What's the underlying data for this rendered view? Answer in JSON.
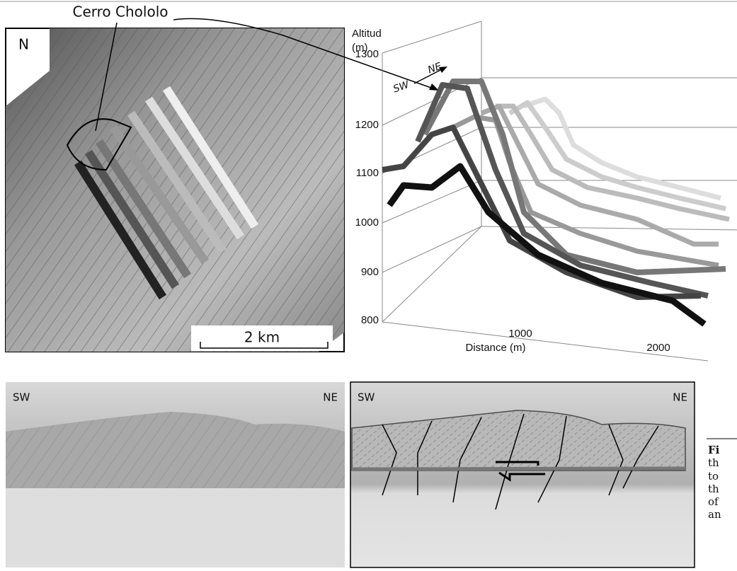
{
  "map": {
    "north_label": "N",
    "place_label": "Cerro Chololo",
    "scale_label": "2 km"
  },
  "profile_chart": {
    "axis_title": "Altitud",
    "axis_unit": "(m)",
    "direction_from": "SW",
    "direction_to": "NE",
    "yticks": [
      "1300",
      "1200",
      "1100",
      "1000",
      "900",
      "800"
    ],
    "xticks": [
      "1000",
      "2000"
    ],
    "x_title": "Distance (m)"
  },
  "photo": {
    "left_label": "SW",
    "right_label": "NE"
  },
  "sketch": {
    "left_label": "SW",
    "right_label": "NE"
  },
  "caption": {
    "lines": [
      "Fi",
      "th",
      "to",
      "th",
      "of",
      "an"
    ]
  }
}
